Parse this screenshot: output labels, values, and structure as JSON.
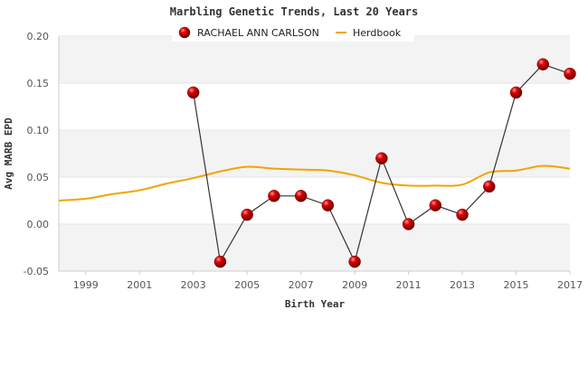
{
  "chart_data": {
    "type": "line",
    "title": "Marbling Genetic Trends, Last 20 Years",
    "xlabel": "Birth Year",
    "ylabel": "Avg MARB EPD",
    "xlim": [
      1998,
      2017
    ],
    "ylim": [
      -0.05,
      0.2
    ],
    "x_ticks": [
      "1999",
      "2001",
      "2003",
      "2005",
      "2007",
      "2009",
      "2011",
      "2013",
      "2015",
      "2017"
    ],
    "y_ticks": [
      "-0.05",
      "0.00",
      "0.05",
      "0.10",
      "0.15",
      "0.20"
    ],
    "legend_position": "top-center",
    "grid": "alternating horizontal bands",
    "series": [
      {
        "name": "RACHAEL ANN CARLSON",
        "color": "#cc0000",
        "marker": "sphere",
        "x": [
          2003,
          2004,
          2005,
          2006,
          2007,
          2008,
          2009,
          2010,
          2011,
          2012,
          2013,
          2014,
          2015,
          2016,
          2017
        ],
        "y": [
          0.14,
          -0.04,
          0.01,
          0.03,
          0.03,
          0.02,
          -0.04,
          0.07,
          0.0,
          0.02,
          0.01,
          0.04,
          0.14,
          0.17,
          0.16
        ]
      },
      {
        "name": "Herdbook",
        "color": "#f0a500",
        "marker": "none",
        "x": [
          1998,
          1999,
          2000,
          2001,
          2002,
          2003,
          2004,
          2005,
          2006,
          2007,
          2008,
          2009,
          2010,
          2011,
          2012,
          2013,
          2014,
          2015,
          2016,
          2017
        ],
        "y": [
          0.025,
          0.027,
          0.032,
          0.036,
          0.043,
          0.049,
          0.056,
          0.061,
          0.059,
          0.058,
          0.057,
          0.052,
          0.044,
          0.041,
          0.041,
          0.042,
          0.055,
          0.057,
          0.062,
          0.059
        ]
      }
    ]
  }
}
